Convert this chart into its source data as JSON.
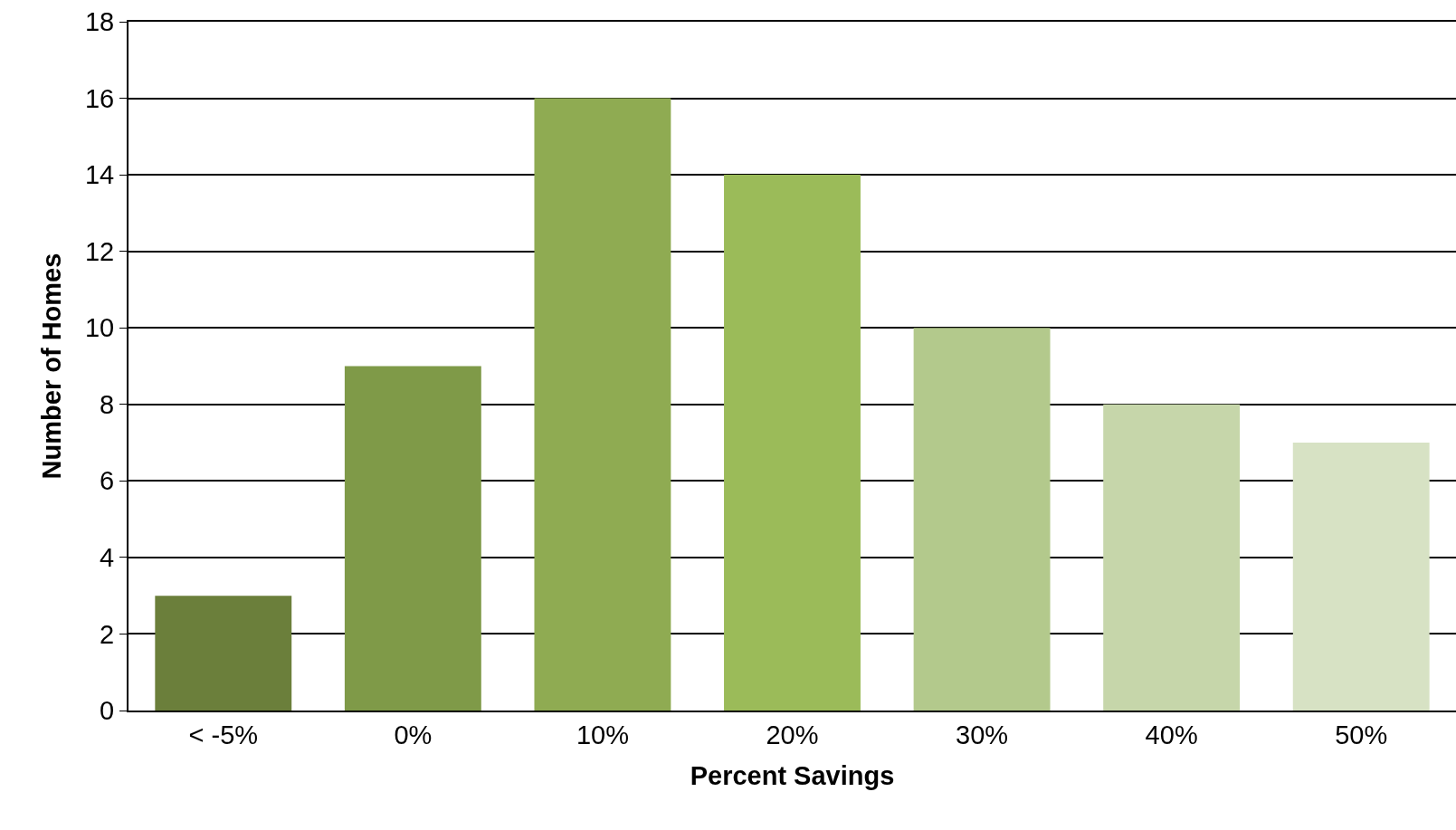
{
  "chart_data": {
    "type": "bar",
    "xlabel": "Percent Savings",
    "ylabel": "Number of Homes",
    "categories": [
      "< -5%",
      "0%",
      "10%",
      "20%",
      "30%",
      "40%",
      "50%"
    ],
    "values": [
      3,
      9,
      16,
      14,
      10,
      8,
      7
    ],
    "colors": [
      "#6b7f3b",
      "#7f9a48",
      "#8fab52",
      "#9bbb59",
      "#b3c98c",
      "#c6d6aa",
      "#d7e2c4"
    ],
    "ylim": [
      0,
      18
    ],
    "yticks": [
      0,
      2,
      4,
      6,
      8,
      10,
      12,
      14,
      16,
      18
    ],
    "grid": "y"
  }
}
